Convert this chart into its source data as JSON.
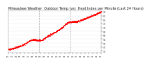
{
  "title": "Milwaukee Weather  Outdoor Temp (vs)  Heat Index per Minute (Last 24 Hours)",
  "title_fontsize": 3.5,
  "background_color": "#ffffff",
  "line_color": "#ff0000",
  "grid_color": "#cccccc",
  "y_label_color": "#333333",
  "x_label_color": "#333333",
  "ylim": [
    38,
    92
  ],
  "yticks": [
    40,
    45,
    50,
    55,
    60,
    65,
    70,
    75,
    80,
    85,
    90
  ],
  "num_points": 1440,
  "vline_positions": [
    480,
    960
  ],
  "vline_color": "#aaaaaa",
  "marker_size": 0.3,
  "num_xticks": 24
}
